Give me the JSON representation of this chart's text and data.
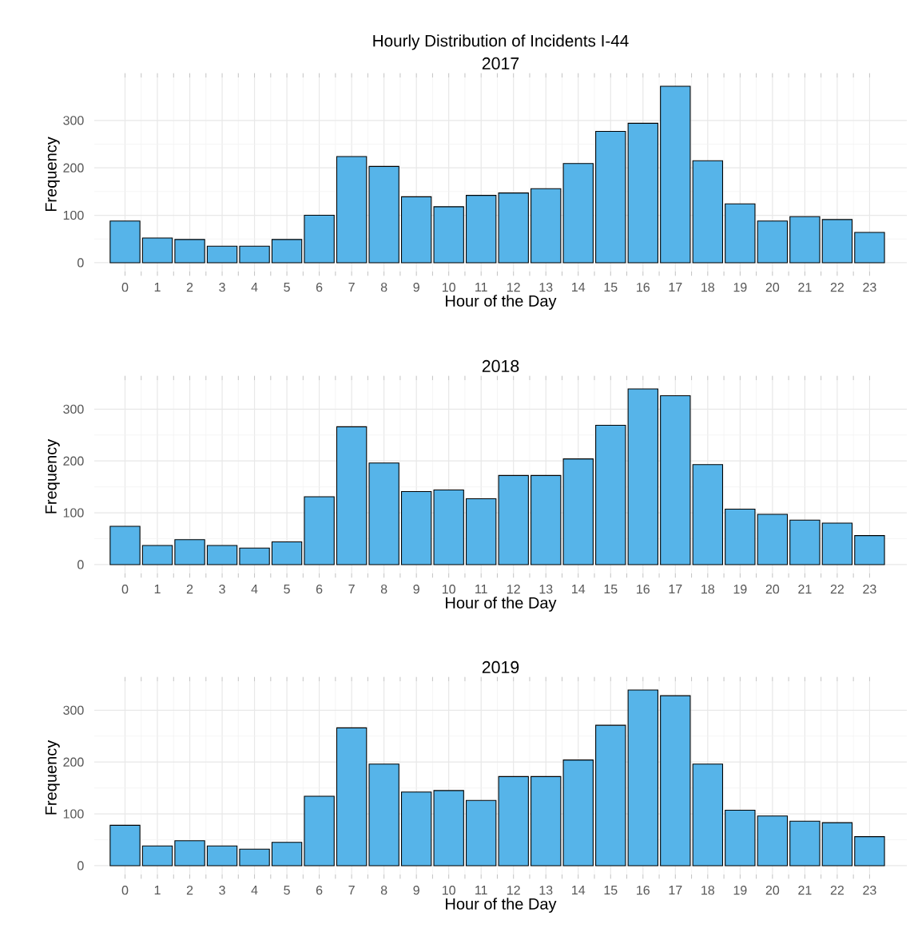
{
  "chart_data": [
    {
      "type": "bar",
      "title": "Hourly Distribution of Incidents I-44",
      "subtitle": "2017",
      "xlabel": "Hour of the Day",
      "ylabel": "Frequency",
      "categories": [
        "0",
        "1",
        "2",
        "3",
        "4",
        "5",
        "6",
        "7",
        "8",
        "9",
        "10",
        "11",
        "12",
        "13",
        "14",
        "15",
        "16",
        "17",
        "18",
        "19",
        "20",
        "21",
        "22",
        "23"
      ],
      "values": [
        88,
        52,
        49,
        35,
        35,
        49,
        100,
        224,
        203,
        139,
        118,
        142,
        147,
        156,
        209,
        277,
        294,
        372,
        215,
        124,
        88,
        97,
        91,
        64
      ],
      "color": "#56b4e9",
      "ylim": [
        -18.6,
        390.6
      ],
      "yticks": [
        0,
        100,
        200,
        300
      ],
      "grid": true
    },
    {
      "type": "bar",
      "title": "2018",
      "xlabel": "Hour of the Day",
      "ylabel": "Frequency",
      "categories": [
        "0",
        "1",
        "2",
        "3",
        "4",
        "5",
        "6",
        "7",
        "8",
        "9",
        "10",
        "11",
        "12",
        "13",
        "14",
        "15",
        "16",
        "17",
        "18",
        "19",
        "20",
        "21",
        "22",
        "23"
      ],
      "values": [
        74,
        37,
        48,
        37,
        32,
        44,
        131,
        266,
        196,
        141,
        144,
        127,
        172,
        172,
        204,
        269,
        339,
        326,
        193,
        107,
        97,
        86,
        80,
        56
      ],
      "color": "#56b4e9",
      "ylim": [
        -17,
        356
      ],
      "yticks": [
        0,
        100,
        200,
        300
      ],
      "grid": true
    },
    {
      "type": "bar",
      "title": "2019",
      "xlabel": "Hour of the Day",
      "ylabel": "Frequency",
      "categories": [
        "0",
        "1",
        "2",
        "3",
        "4",
        "5",
        "6",
        "7",
        "8",
        "9",
        "10",
        "11",
        "12",
        "13",
        "14",
        "15",
        "16",
        "17",
        "18",
        "19",
        "20",
        "21",
        "22",
        "23"
      ],
      "values": [
        78,
        38,
        48,
        38,
        32,
        45,
        134,
        266,
        196,
        142,
        145,
        126,
        172,
        172,
        204,
        271,
        339,
        328,
        196,
        107,
        96,
        86,
        83,
        56
      ],
      "color": "#56b4e9",
      "ylim": [
        -17,
        356
      ],
      "yticks": [
        0,
        100,
        200,
        300
      ],
      "grid": true
    }
  ]
}
